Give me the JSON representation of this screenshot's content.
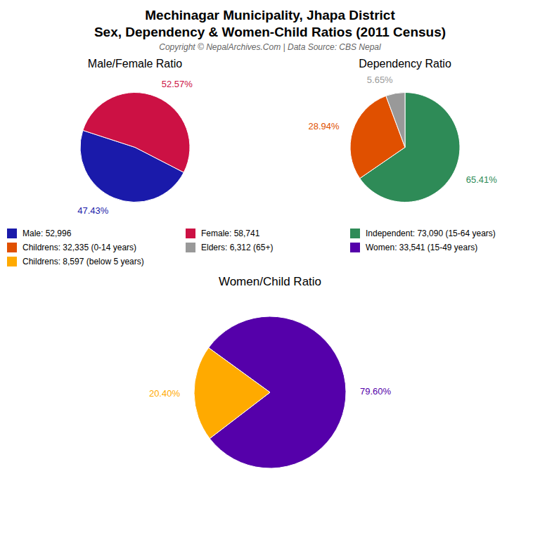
{
  "title": "Mechinagar Municipality, Jhapa District",
  "subtitle": "Sex, Dependency & Women-Child Ratios (2011 Census)",
  "annotations": [
    "Copyright © NepalArchives.Com | Data Source: CBS Nepal"
  ],
  "chart_data": [
    {
      "type": "pie",
      "title": "Male/Female Ratio",
      "categories": [
        "Male: 52,996",
        "Female: 58,741"
      ],
      "values": [
        47.43,
        52.57
      ],
      "value_labels": [
        "47.43%",
        "52.57%"
      ],
      "colors": [
        "#1a1aaa",
        "#cc1144"
      ],
      "data_labels": true,
      "legend": "bottom"
    },
    {
      "type": "pie",
      "title": "Dependency Ratio",
      "categories": [
        "Independent: 73,090 (15-64 years)",
        "Childrens: 32,335 (0-14 years)",
        "Elders: 6,312 (65+)"
      ],
      "values": [
        65.41,
        28.94,
        5.65
      ],
      "value_labels": [
        "65.41%",
        "28.94%",
        "5.65%"
      ],
      "colors": [
        "#2e8b57",
        "#e05000",
        "#999999"
      ],
      "data_labels": true,
      "legend": "bottom"
    },
    {
      "type": "pie",
      "title": "Women/Child Ratio",
      "categories": [
        "Women: 33,541 (15-49 years)",
        "Childrens: 8,597 (below 5 years)"
      ],
      "values": [
        79.6,
        20.4
      ],
      "value_labels": [
        "79.60%",
        "20.40%"
      ],
      "colors": [
        "#5500aa",
        "#ffaa00"
      ],
      "data_labels": true,
      "legend": "top"
    }
  ]
}
